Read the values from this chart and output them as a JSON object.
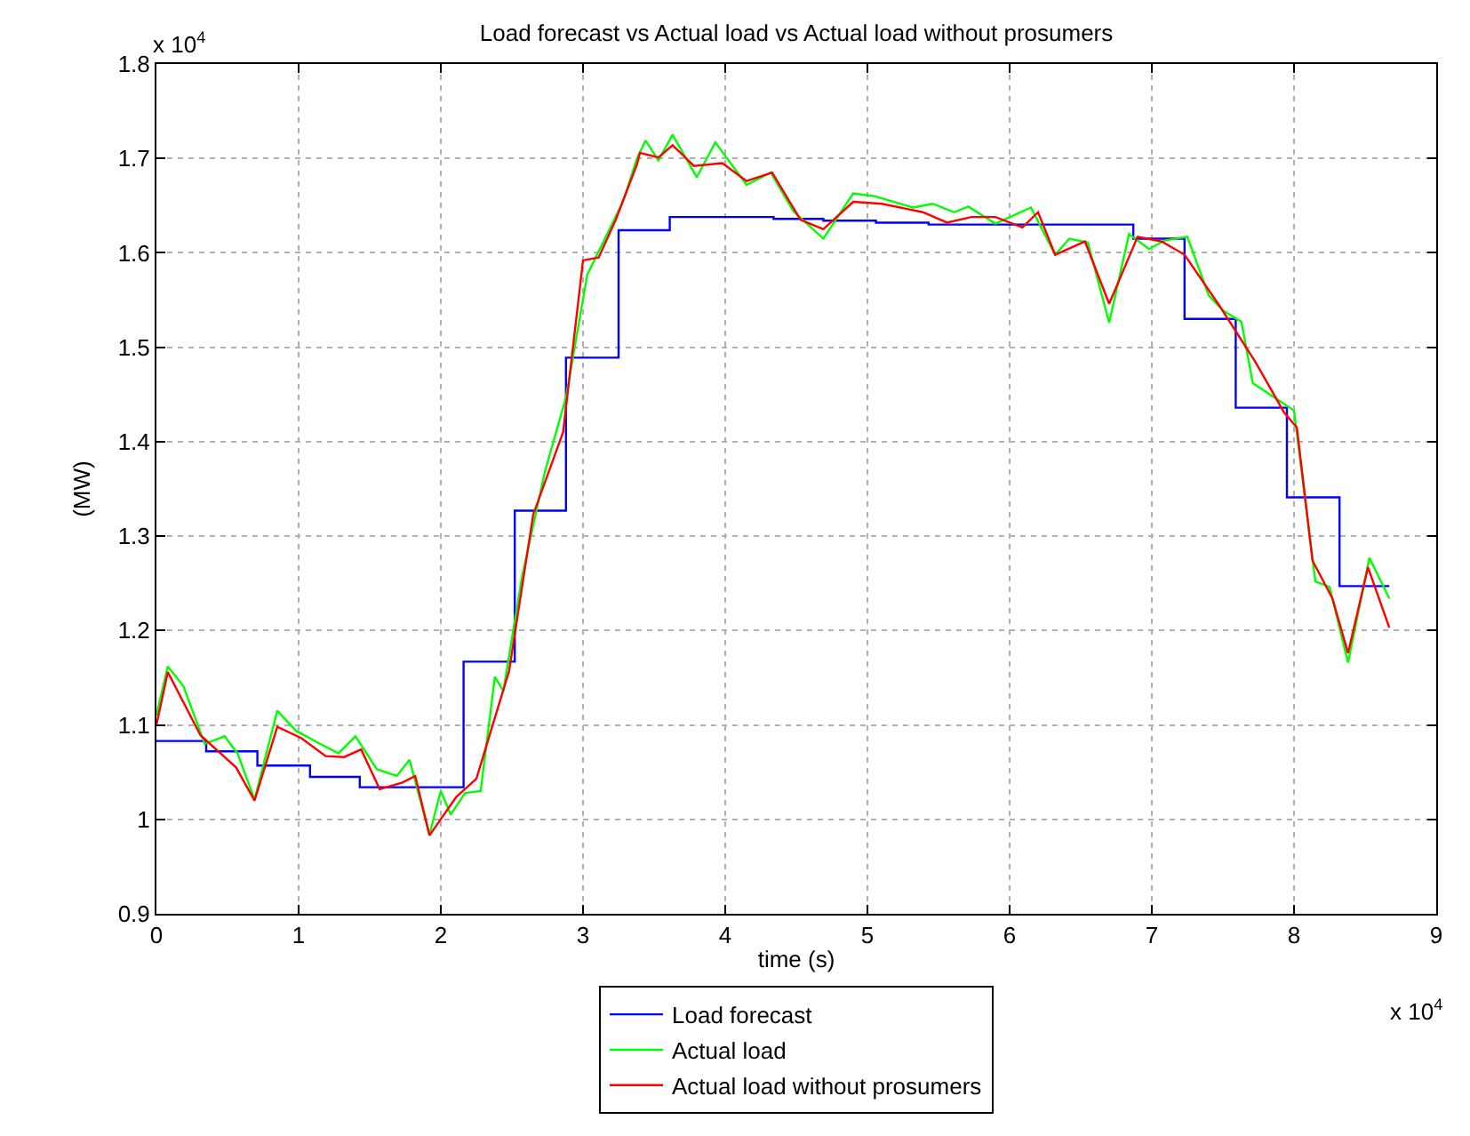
{
  "chart_data": {
    "type": "line",
    "title": "Load forecast vs Actual load vs Actual load without prosumers",
    "xlabel": "time (s)",
    "ylabel": "(MW)",
    "annotations": [
      "x 10$^{4}$",
      "x 10$^{4}$"
    ],
    "xlim": [
      0,
      9
    ],
    "xticks": [
      0,
      1,
      2,
      3,
      4,
      5,
      6,
      7,
      8,
      9
    ],
    "ylim": [
      0.9,
      1.8
    ],
    "yticks": [
      0.9,
      1,
      1.1,
      1.2,
      1.3,
      1.4,
      1.5,
      1.6,
      1.7,
      1.8
    ],
    "grid": true,
    "legend": "bottom",
    "series": [
      {
        "name": "Load forecast",
        "type": "step",
        "color": "#0000ff",
        "x": [
          0,
          0.35,
          0.71,
          1.08,
          1.43,
          2.16,
          2.52,
          2.88,
          3.25,
          3.61,
          4.34,
          4.69,
          5.06,
          5.43,
          6.87,
          7.23,
          7.59,
          7.95,
          8.32,
          8.67
        ],
        "values": [
          1.083,
          1.072,
          1.057,
          1.045,
          1.034,
          1.167,
          1.327,
          1.489,
          1.624,
          1.638,
          1.636,
          1.634,
          1.632,
          1.63,
          1.615,
          1.53,
          1.436,
          1.341,
          1.247,
          1.247
        ]
      },
      {
        "name": "Actual load",
        "color": "#00ff00",
        "x": [
          0,
          0.08,
          0.19,
          0.34,
          0.48,
          0.57,
          0.69,
          0.85,
          0.98,
          1.15,
          1.28,
          1.4,
          1.55,
          1.69,
          1.78,
          1.92,
          2.0,
          2.07,
          2.17,
          2.28,
          2.38,
          2.44,
          2.57,
          2.73,
          2.88,
          3.03,
          3.19,
          3.28,
          3.38,
          3.44,
          3.53,
          3.63,
          3.8,
          3.93,
          4.15,
          4.32,
          4.48,
          4.69,
          4.9,
          5.05,
          5.32,
          5.46,
          5.61,
          5.71,
          5.9,
          6.15,
          6.32,
          6.42,
          6.55,
          6.7,
          6.84,
          6.98,
          7.09,
          7.25,
          7.4,
          7.5,
          7.63,
          7.71,
          7.86,
          8.0,
          8.15,
          8.25,
          8.38,
          8.53,
          8.67
        ],
        "values": [
          1.11,
          1.162,
          1.141,
          1.08,
          1.088,
          1.07,
          1.021,
          1.115,
          1.094,
          1.08,
          1.07,
          1.088,
          1.053,
          1.046,
          1.063,
          0.984,
          1.03,
          1.005,
          1.028,
          1.03,
          1.151,
          1.136,
          1.256,
          1.367,
          1.447,
          1.577,
          1.626,
          1.654,
          1.7,
          1.719,
          1.698,
          1.725,
          1.68,
          1.717,
          1.672,
          1.685,
          1.644,
          1.615,
          1.663,
          1.66,
          1.648,
          1.652,
          1.643,
          1.649,
          1.631,
          1.648,
          1.598,
          1.615,
          1.611,
          1.526,
          1.62,
          1.604,
          1.613,
          1.617,
          1.555,
          1.539,
          1.527,
          1.462,
          1.447,
          1.433,
          1.252,
          1.246,
          1.166,
          1.277,
          1.234
        ]
      },
      {
        "name": "Actual load without prosumers",
        "color": "#ff0000",
        "x": [
          0,
          0.08,
          0.31,
          0.56,
          0.69,
          0.85,
          1.02,
          1.19,
          1.32,
          1.44,
          1.57,
          1.73,
          1.82,
          1.92,
          2.11,
          2.25,
          2.48,
          2.65,
          2.86,
          3.0,
          3.11,
          3.23,
          3.38,
          3.4,
          3.53,
          3.63,
          3.78,
          3.98,
          4.15,
          4.33,
          4.53,
          4.69,
          4.9,
          5.1,
          5.39,
          5.56,
          5.73,
          5.9,
          6.09,
          6.2,
          6.32,
          6.53,
          6.7,
          6.9,
          7.07,
          7.23,
          7.48,
          7.73,
          7.93,
          8.02,
          8.13,
          8.27,
          8.38,
          8.52,
          8.67
        ],
        "values": [
          1.1,
          1.156,
          1.089,
          1.055,
          1.02,
          1.098,
          1.086,
          1.067,
          1.066,
          1.074,
          1.032,
          1.039,
          1.046,
          0.983,
          1.024,
          1.043,
          1.157,
          1.323,
          1.41,
          1.592,
          1.595,
          1.635,
          1.694,
          1.706,
          1.701,
          1.714,
          1.692,
          1.695,
          1.676,
          1.685,
          1.635,
          1.625,
          1.654,
          1.652,
          1.643,
          1.632,
          1.638,
          1.638,
          1.627,
          1.643,
          1.598,
          1.612,
          1.546,
          1.617,
          1.612,
          1.598,
          1.543,
          1.484,
          1.431,
          1.415,
          1.274,
          1.234,
          1.176,
          1.267,
          1.203
        ]
      }
    ]
  }
}
